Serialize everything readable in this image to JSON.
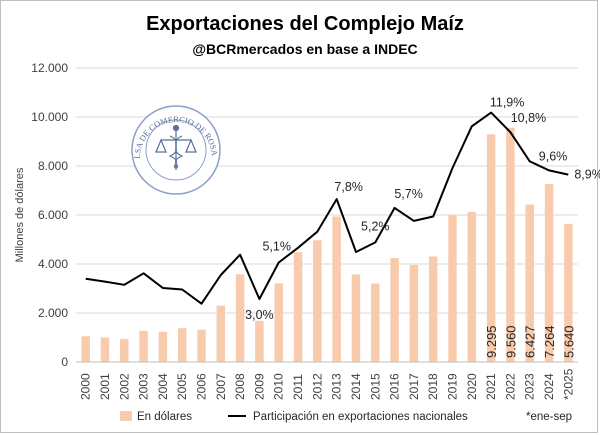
{
  "header": {
    "title": "Exportaciones del Complejo Maíz",
    "subtitle": "@BCRmercados en base a INDEC"
  },
  "seal": {
    "text": "BOLSA DE COMERCIO DE ROSARIO",
    "icon": "caduceus-scales-icon"
  },
  "colors": {
    "bars": "#f8cbad",
    "line": "#000000",
    "grid": "#d9d9d9"
  },
  "chart_data": {
    "type": "bar",
    "ylabel": "Millones de dólares",
    "ylim": [
      0,
      12000
    ],
    "yticks": [
      "0",
      "2.000",
      "4.000",
      "6.000",
      "8.000",
      "10.000",
      "12.000"
    ],
    "grid": true,
    "legend_placement": "bottom",
    "categories": [
      "2000",
      "2001",
      "2002",
      "2003",
      "2004",
      "2005",
      "2006",
      "2007",
      "2008",
      "2009",
      "2010",
      "2011",
      "2012",
      "2013",
      "2014",
      "2015",
      "2016",
      "2017",
      "2018",
      "2019",
      "2020",
      "2021",
      "2022",
      "2023",
      "2024",
      "*2025"
    ],
    "series": [
      {
        "name": "En dólares",
        "type": "bar",
        "values": [
          1050,
          1000,
          940,
          1270,
          1230,
          1380,
          1320,
          2300,
          3580,
          1680,
          3210,
          4480,
          4970,
          5940,
          3570,
          3200,
          4240,
          3960,
          4310,
          6020,
          6130,
          9295,
          9560,
          6427,
          7264,
          5640
        ],
        "data_labels": {
          "21": "9.295",
          "22": "9.560",
          "23": "6.427",
          "24": "7.264",
          "25": "5.640"
        }
      },
      {
        "name": "Participación en exportaciones nacionales",
        "type": "line",
        "values": [
          3400,
          3280,
          3150,
          3620,
          3020,
          2960,
          2380,
          3550,
          4380,
          2570,
          4060,
          4660,
          5320,
          6650,
          4490,
          4880,
          6290,
          5760,
          5940,
          7920,
          9620,
          10180,
          9380,
          8190,
          7820,
          7650
        ],
        "data_labels": {
          "9": "3,0%",
          "10": "5,1%",
          "13": "7,8%",
          "15": "5,2%",
          "16": "5,7%",
          "21": "11,9%",
          "22": "10,8%",
          "24": "9,6%",
          "25": "8,9%"
        }
      }
    ],
    "note": "*ene-sep"
  }
}
